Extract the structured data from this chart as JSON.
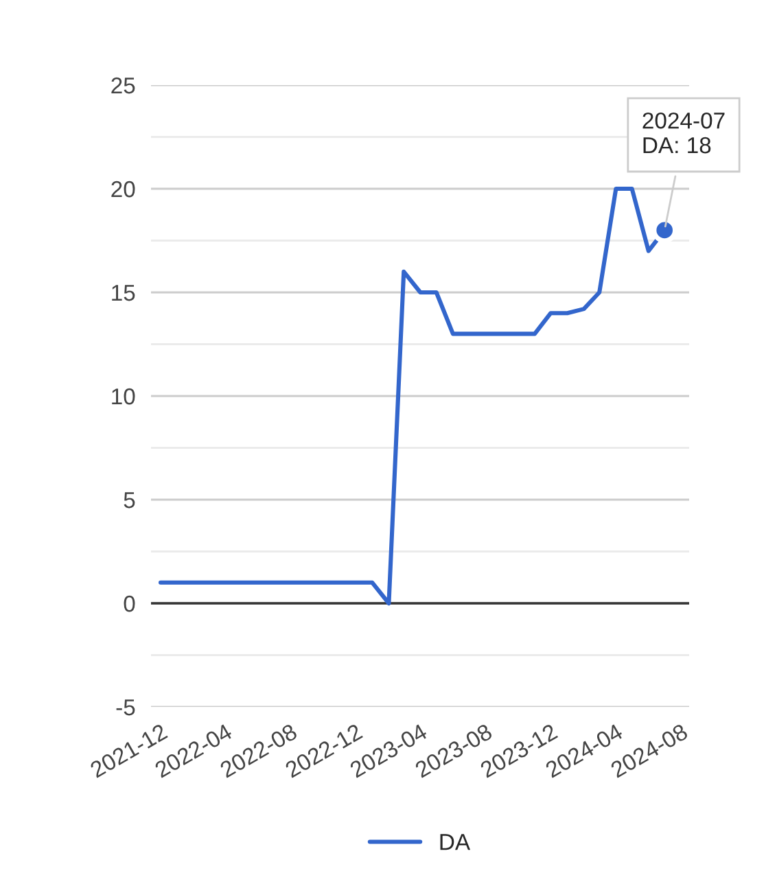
{
  "chart_data": {
    "type": "line",
    "x": [
      "2021-12",
      "2022-01",
      "2022-02",
      "2022-03",
      "2022-04",
      "2022-05",
      "2022-06",
      "2022-07",
      "2022-08",
      "2022-09",
      "2022-10",
      "2022-11",
      "2022-12",
      "2023-01",
      "2023-02",
      "2023-03",
      "2023-04",
      "2023-05",
      "2023-06",
      "2023-07",
      "2023-08",
      "2023-09",
      "2023-10",
      "2023-11",
      "2023-12",
      "2024-01",
      "2024-02",
      "2024-03",
      "2024-04",
      "2024-05",
      "2024-06",
      "2024-07"
    ],
    "series": [
      {
        "name": "DA",
        "color": "#3366cc",
        "values": [
          1,
          1,
          1,
          1,
          1,
          1,
          1,
          1,
          1,
          1,
          1,
          1,
          1,
          1,
          0,
          16,
          15,
          15,
          13,
          13,
          13,
          13,
          13,
          13,
          14,
          14,
          14.2,
          15,
          20,
          20,
          17,
          18
        ]
      }
    ],
    "xlim": [
      "2021-11-13",
      "2024-08-16"
    ],
    "xticks": [
      {
        "value": "2021-12",
        "label": "2021-12"
      },
      {
        "value": "2022-04",
        "label": "2022-04"
      },
      {
        "value": "2022-08",
        "label": "2022-08"
      },
      {
        "value": "2022-12",
        "label": "2022-12"
      },
      {
        "value": "2023-04",
        "label": "2023-04"
      },
      {
        "value": "2023-08",
        "label": "2023-08"
      },
      {
        "value": "2023-12",
        "label": "2023-12"
      },
      {
        "value": "2024-04",
        "label": "2024-04"
      },
      {
        "value": "2024-08",
        "label": "2024-08"
      }
    ],
    "ylim": [
      -5,
      25
    ],
    "yticks": [
      -5,
      {
        "value": -2.5,
        "label": null
      },
      0,
      {
        "value": 2.5,
        "label": null
      },
      5,
      {
        "value": 7.5,
        "label": null
      },
      10,
      {
        "value": 12.5,
        "label": null
      },
      15,
      {
        "value": 17.5,
        "label": null
      },
      20,
      {
        "value": 22.5,
        "label": null
      },
      25
    ],
    "ref_lines": [
      {
        "axis": "y",
        "value": 0,
        "color": "#333333"
      }
    ],
    "annotations": [
      {
        "text": "2024-07\nDA: 18",
        "x": "2024-07",
        "y": 18
      }
    ],
    "grid": "y",
    "legend": "bottom",
    "line_style": "solid",
    "marker": "none"
  }
}
